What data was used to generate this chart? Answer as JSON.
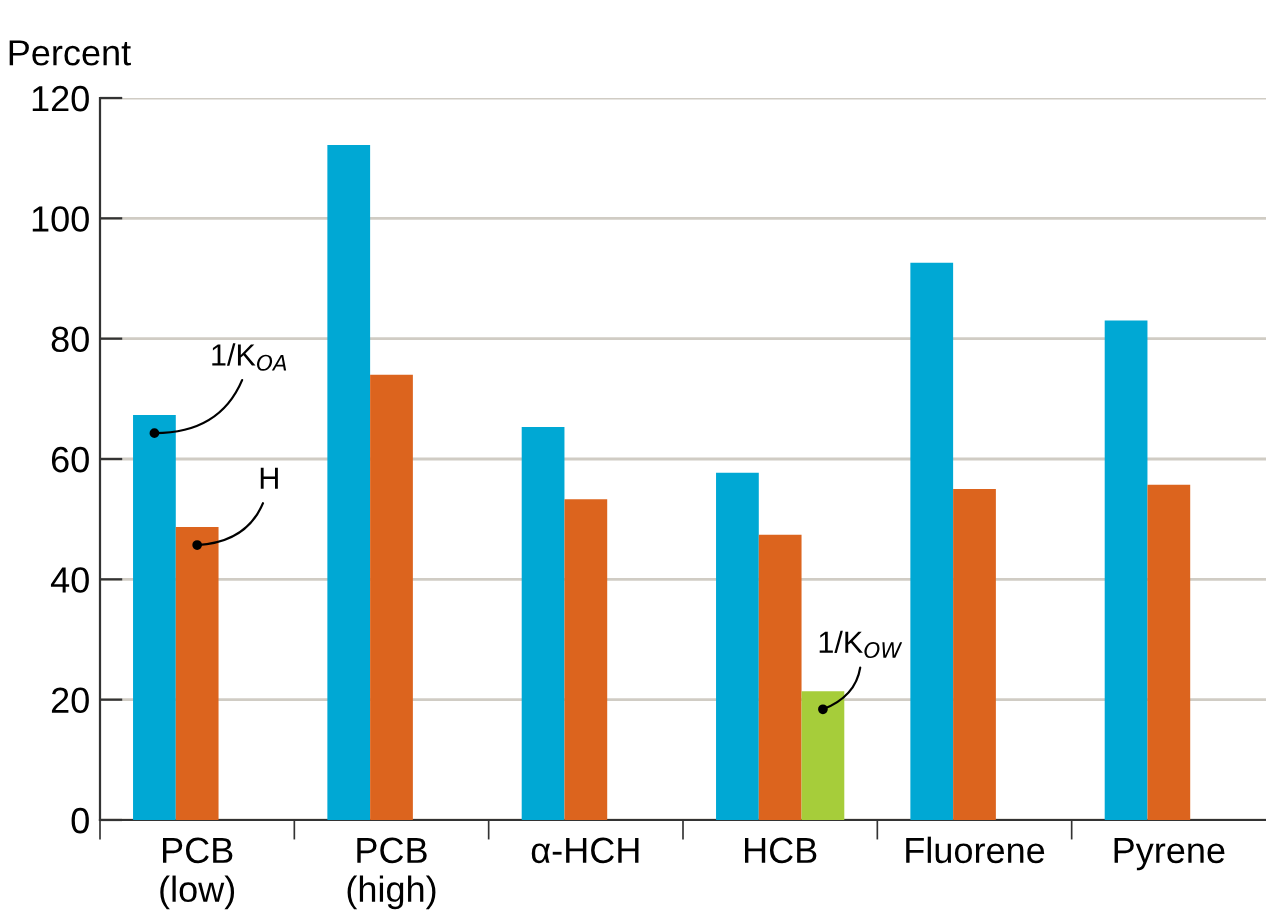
{
  "chart_data": {
    "type": "bar",
    "ylabel": "Percent",
    "categories": [
      "PCB\n(low)",
      "PCB\n(high)",
      "α-HCH",
      "HCB",
      "Fluorene",
      "Pyrene"
    ],
    "series": [
      {
        "name": "1/K$_{OA}$",
        "color": "#00a8d4",
        "values": [
          67.3,
          112.2,
          65.3,
          57.7,
          92.6,
          83.0
        ]
      },
      {
        "name": "H",
        "color": "#dc641e",
        "values": [
          48.7,
          74.0,
          53.3,
          47.4,
          55.0,
          55.7
        ]
      },
      {
        "name": "1/K$_{OW}$",
        "color": "#a6cd3a",
        "values": [
          null,
          null,
          null,
          21.4,
          null,
          null
        ]
      }
    ],
    "ylim": [
      0,
      120
    ],
    "yticks": [
      0,
      20,
      40,
      60,
      80,
      100,
      120
    ],
    "grid": "y",
    "legend": false
  }
}
